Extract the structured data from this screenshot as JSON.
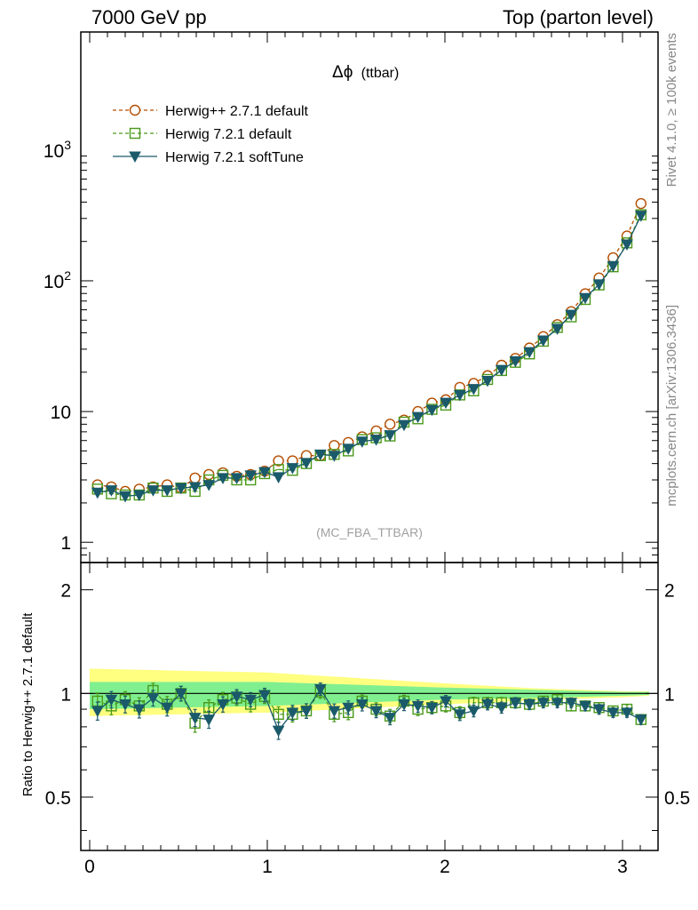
{
  "header": {
    "left": "7000 GeV pp",
    "right": "Top (parton level)"
  },
  "side": {
    "rivet": "Rivet 4.1.0, ≥ 100k events",
    "mcplots": "mcplots.cern.ch [arXiv:1306.3436]"
  },
  "chart_data": {
    "type": "line",
    "title": "Δϕ",
    "title_suffix": "(ttbar)",
    "analysis": "(MC_FBA_TTBAR)",
    "xlabel": "",
    "ylabel_ratio": "Ratio to Herwig++ 2.7.1 default",
    "xlim": [
      -0.05,
      3.2
    ],
    "ylim_main": [
      0.7,
      8000
    ],
    "ylim_ratio": [
      0.35,
      2.4
    ],
    "x_ticks": [
      "0",
      "1",
      "2",
      "3"
    ],
    "x_tick_values": [
      0,
      1,
      2,
      3
    ],
    "y_ticks_main": [
      "1",
      "10",
      "10^2",
      "10^3"
    ],
    "y_tick_values_main": [
      1,
      10,
      100,
      1000
    ],
    "y_ticks_ratio": [
      "0.5",
      "1",
      "2"
    ],
    "y_tick_values_ratio": [
      0.5,
      1,
      2
    ],
    "x": [
      0.044,
      0.122,
      0.2,
      0.279,
      0.357,
      0.436,
      0.514,
      0.593,
      0.671,
      0.75,
      0.828,
      0.906,
      0.985,
      1.063,
      1.142,
      1.22,
      1.299,
      1.377,
      1.456,
      1.534,
      1.613,
      1.691,
      1.77,
      1.848,
      1.927,
      2.005,
      2.084,
      2.162,
      2.24,
      2.319,
      2.397,
      2.476,
      2.554,
      2.633,
      2.711,
      2.79,
      2.868,
      2.947,
      3.025,
      3.104
    ],
    "series": [
      {
        "name": "Herwig++ 2.7.1 default",
        "color": "#b34d00",
        "marker": "circle",
        "dashed": true,
        "values": [
          2.75,
          2.65,
          2.45,
          2.55,
          2.65,
          2.75,
          2.6,
          3.1,
          3.3,
          3.4,
          3.2,
          3.3,
          3.5,
          4.2,
          4.2,
          4.6,
          4.6,
          5.5,
          5.8,
          6.4,
          7.1,
          8.0,
          8.6,
          10.0,
          11.6,
          12.3,
          15.3,
          16.4,
          18.8,
          22.6,
          25.5,
          30.6,
          37.4,
          46.2,
          58.1,
          79.6,
          105,
          150,
          220,
          390
        ]
      },
      {
        "name": "Herwig 7.2.1 default",
        "color": "#4a9a1a",
        "marker": "square",
        "dashed": true,
        "values": [
          2.55,
          2.35,
          2.3,
          2.3,
          2.6,
          2.45,
          2.6,
          2.45,
          3.0,
          3.25,
          3.0,
          3.0,
          3.35,
          3.6,
          3.55,
          4.0,
          4.6,
          4.7,
          5.0,
          6.1,
          6.3,
          6.5,
          8.3,
          8.8,
          10.4,
          11.2,
          13.4,
          14.4,
          17.6,
          20.6,
          23.8,
          27.6,
          34.5,
          44.0,
          53.0,
          72.0,
          93.0,
          128,
          195,
          320
        ]
      },
      {
        "name": "Herwig 7.2.1 softTune",
        "color": "#1a5a6a",
        "marker": "triangle",
        "dashed": false,
        "values": [
          2.4,
          2.5,
          2.25,
          2.3,
          2.5,
          2.5,
          2.6,
          2.65,
          2.75,
          3.1,
          3.1,
          3.25,
          3.45,
          3.15,
          3.7,
          4.05,
          4.7,
          4.6,
          5.2,
          5.9,
          6.1,
          6.6,
          7.9,
          9.1,
          10.3,
          11.7,
          13.4,
          14.9,
          17.2,
          20.8,
          24.3,
          28.5,
          35.0,
          43.0,
          55.0,
          74.0,
          94.0,
          130,
          190,
          315
        ]
      }
    ],
    "ratio_series": [
      {
        "name": "Herwig 7.2.1 default",
        "values": [
          0.95,
          0.92,
          0.96,
          0.92,
          1.02,
          0.93,
          1.0,
          0.82,
          0.91,
          0.96,
          0.97,
          0.93,
          0.98,
          0.87,
          0.87,
          0.89,
          1.01,
          0.87,
          0.88,
          0.95,
          0.9,
          0.86,
          0.95,
          0.9,
          0.91,
          0.92,
          0.88,
          0.94,
          0.94,
          0.94,
          0.94,
          0.93,
          0.95,
          0.96,
          0.92,
          0.92,
          0.91,
          0.89,
          0.9,
          0.84
        ]
      },
      {
        "name": "Herwig 7.2.1 softTune",
        "values": [
          0.89,
          0.96,
          0.93,
          0.9,
          0.97,
          0.91,
          1.0,
          0.85,
          0.84,
          0.93,
          0.98,
          0.96,
          0.99,
          0.78,
          0.88,
          0.89,
          1.03,
          0.89,
          0.91,
          0.93,
          0.89,
          0.85,
          0.93,
          0.92,
          0.91,
          0.95,
          0.87,
          0.89,
          0.93,
          0.91,
          0.94,
          0.93,
          0.94,
          0.94,
          0.94,
          0.92,
          0.9,
          0.88,
          0.88,
          0.84
        ]
      }
    ],
    "ratio_band_green": {
      "x": [
        0.0,
        1.0,
        2.0,
        2.5,
        3.0,
        3.15
      ],
      "lower": [
        0.9,
        0.92,
        0.96,
        0.97,
        0.985,
        0.99
      ],
      "upper": [
        1.08,
        1.08,
        1.04,
        1.025,
        1.01,
        1.01
      ]
    },
    "ratio_band_yellow": {
      "x": [
        0.0,
        1.0,
        2.0,
        2.5,
        3.0,
        3.15
      ],
      "lower": [
        0.86,
        0.88,
        0.93,
        0.955,
        0.975,
        0.985
      ],
      "upper": [
        1.18,
        1.15,
        1.07,
        1.035,
        1.015,
        1.015
      ]
    },
    "legend_position": "top-left",
    "grid": false
  }
}
